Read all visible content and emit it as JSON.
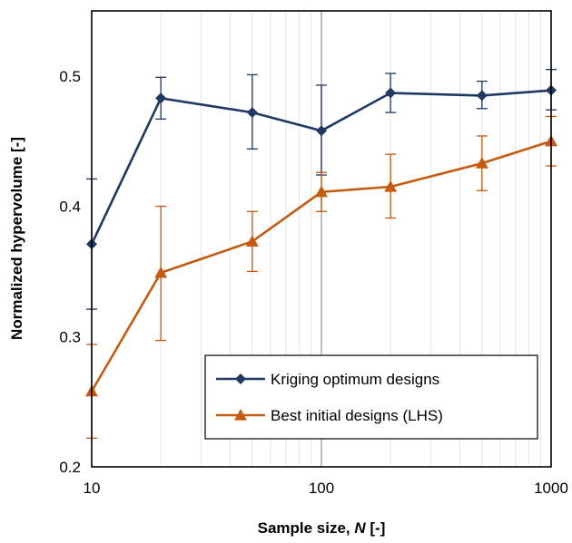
{
  "chart_data": {
    "type": "line",
    "x_scale": "log",
    "xlim": [
      10,
      1000
    ],
    "ylim": [
      0.2,
      0.55
    ],
    "x_ticks": [
      "10",
      "100",
      "1000"
    ],
    "y_ticks": [
      "0.2",
      "0.3",
      "0.4",
      "0.5"
    ],
    "xlabel": {
      "text": "Sample size, ",
      "italic": "N",
      "suffix": " [-]"
    },
    "ylabel": "Normalized hypervolume [-]",
    "grid": {
      "minor_x": true,
      "major_x_line_at": 100
    },
    "legend": {
      "position": "bottom-right"
    },
    "series": [
      {
        "name": "Kriging optimum designs",
        "color": "#1f3864",
        "marker": "diamond",
        "x": [
          10,
          20,
          50,
          100,
          200,
          500,
          1000
        ],
        "y": [
          0.371,
          0.483,
          0.472,
          0.458,
          0.487,
          0.485,
          0.489
        ],
        "err_low": [
          0.321,
          0.467,
          0.444,
          0.424,
          0.472,
          0.475,
          0.474
        ],
        "err_high": [
          0.421,
          0.499,
          0.501,
          0.493,
          0.502,
          0.496,
          0.505
        ]
      },
      {
        "name": "Best initial designs (LHS)",
        "color": "#c55a11",
        "marker": "triangle",
        "x": [
          10,
          20,
          50,
          100,
          200,
          500,
          1000
        ],
        "y": [
          0.258,
          0.349,
          0.373,
          0.411,
          0.415,
          0.433,
          0.45
        ],
        "err_low": [
          0.222,
          0.297,
          0.35,
          0.396,
          0.391,
          0.412,
          0.431
        ],
        "err_high": [
          0.294,
          0.4,
          0.396,
          0.426,
          0.44,
          0.454,
          0.469
        ]
      }
    ]
  }
}
